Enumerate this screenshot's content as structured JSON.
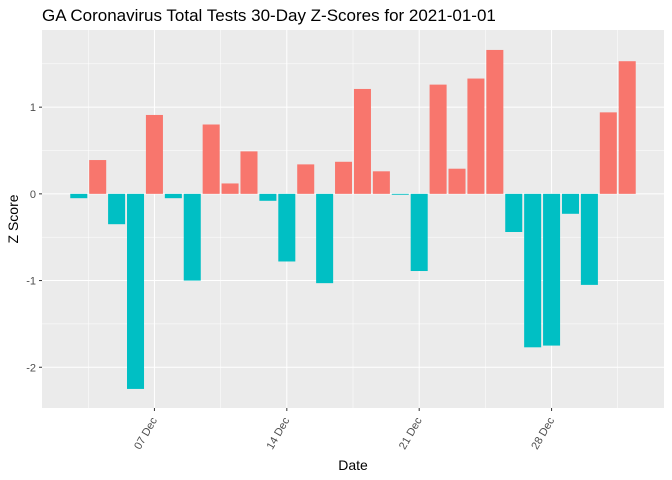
{
  "chart_data": {
    "type": "bar",
    "title": "GA Coronavirus Total Tests 30-Day Z-Scores for 2021-01-01",
    "x_label": "Date",
    "y_label": "Z Score",
    "categories": [
      null,
      null,
      null,
      null,
      "07 Dec",
      null,
      null,
      null,
      null,
      null,
      null,
      "14 Dec",
      null,
      null,
      null,
      null,
      null,
      null,
      "21 Dec",
      null,
      null,
      null,
      null,
      null,
      null,
      "28 Dec",
      null,
      null,
      null,
      null
    ],
    "values": [
      -0.05,
      0.39,
      -0.35,
      -2.25,
      0.91,
      -0.05,
      -1.0,
      0.8,
      0.12,
      0.49,
      -0.08,
      -0.78,
      0.34,
      -1.03,
      0.37,
      1.21,
      0.26,
      -0.01,
      -0.89,
      1.26,
      0.29,
      1.33,
      1.66,
      -0.44,
      -1.77,
      -1.75,
      -0.23,
      -1.05,
      0.94,
      1.53
    ],
    "color_positive": "#F8766D",
    "color_negative": "#00BFC4",
    "ylim": [
      -2.47,
      1.89
    ],
    "yticks": [
      -2,
      -1,
      0,
      1
    ],
    "grid": true
  }
}
